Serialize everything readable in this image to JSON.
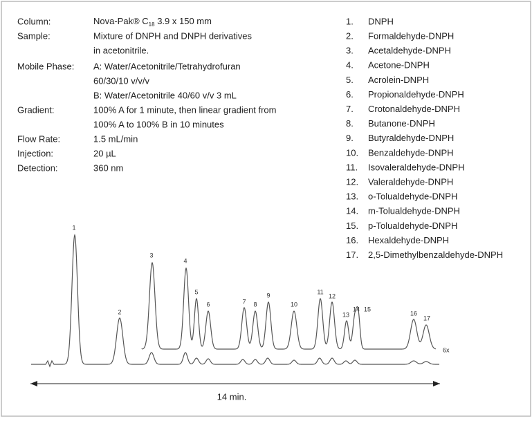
{
  "conditions": [
    {
      "label": "Column:",
      "lines": [
        {
          "parts": [
            "Nova-Pak® C",
            "18",
            " 3.9 x 150 mm"
          ]
        }
      ]
    },
    {
      "label": "Sample:",
      "lines": [
        "Mixture of DNPH and DNPH derivatives",
        "in acetonitrile."
      ]
    },
    {
      "label": "Mobile Phase:",
      "lines": [
        "A: Water/Acetonitrile/Tetrahydrofuran",
        "60/30/10 v/v/v",
        "B: Water/Acetonitrile 40/60 v/v 3 mL"
      ]
    },
    {
      "label": "Gradient:",
      "lines": [
        "100% A for 1 minute, then linear gradient from",
        "100% A to 100% B in 10 minutes"
      ]
    },
    {
      "label": "Flow Rate:",
      "lines": [
        "1.5 mL/min"
      ]
    },
    {
      "label": "Injection:",
      "lines": [
        "20 µL"
      ]
    },
    {
      "label": "Detection:",
      "lines": [
        "360 nm"
      ]
    }
  ],
  "compounds": [
    {
      "number": "1.",
      "name": "DNPH"
    },
    {
      "number": "2.",
      "name": "Formaldehyde-DNPH"
    },
    {
      "number": "3.",
      "name": "Acetaldehyde-DNPH"
    },
    {
      "number": "4.",
      "name": "Acetone-DNPH"
    },
    {
      "number": "5.",
      "name": "Acrolein-DNPH"
    },
    {
      "number": "6.",
      "name": "Propionaldehyde-DNPH"
    },
    {
      "number": "7.",
      "name": "Crotonaldehyde-DNPH"
    },
    {
      "number": "8.",
      "name": "Butanone-DNPH"
    },
    {
      "number": "9.",
      "name": "Butyraldehyde-DNPH"
    },
    {
      "number": "10.",
      "name": "Benzaldehyde-DNPH"
    },
    {
      "number": "11.",
      "name": "Isovaleraldehyde-DNPH"
    },
    {
      "number": "12.",
      "name": "Valeraldehyde-DNPH"
    },
    {
      "number": "13.",
      "name": "o-Tolualdehyde-DNPH"
    },
    {
      "number": "14.",
      "name": "m-Tolualdehyde-DNPH"
    },
    {
      "number": "15.",
      "name": "p-Tolualdehyde-DNPH"
    },
    {
      "number": "16.",
      "name": "Hexaldehyde-DNPH"
    },
    {
      "number": "17.",
      "name": "2,5-Dimethylbenzaldehyde-DNPH"
    }
  ],
  "peak_labels": [
    "1",
    "2",
    "3",
    "4",
    "5",
    "6",
    "7",
    "8",
    "9",
    "10",
    "11",
    "12",
    "13",
    "14",
    "15",
    "16",
    "17"
  ],
  "trace_label": "6x",
  "time_span": "14 min."
}
